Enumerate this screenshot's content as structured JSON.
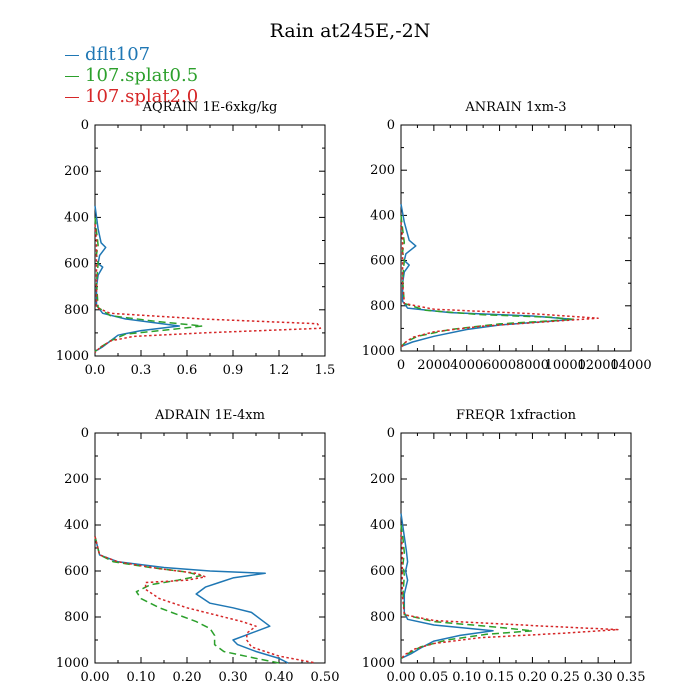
{
  "title": "Rain at245E,-2N",
  "legend": [
    {
      "label": "dflt107",
      "color": "#1f77b4"
    },
    {
      "label": "107.splat0.5",
      "color": "#2ca02c"
    },
    {
      "label": "107.splat2.0",
      "color": "#d62728"
    }
  ],
  "chart_data": [
    {
      "type": "line",
      "title": "AQRAIN  1E-6xkg/kg",
      "ylim": [
        1000,
        0
      ],
      "yticks": [
        0,
        200,
        400,
        600,
        800,
        1000
      ],
      "xlim": [
        0,
        1.5
      ],
      "xticks": [
        0.0,
        0.3,
        0.6,
        0.9,
        1.2,
        1.5
      ],
      "xtick_labels": [
        "0.0",
        "0.3",
        "0.6",
        "0.9",
        "1.2",
        "1.5"
      ],
      "series": [
        {
          "name": "dflt107",
          "style": "solid",
          "color": "#1f77b4",
          "points": [
            [
              0,
              350
            ],
            [
              0.02,
              450
            ],
            [
              0.04,
              510
            ],
            [
              0.07,
              530
            ],
            [
              0.03,
              565
            ],
            [
              0.02,
              600
            ],
            [
              0.05,
              615
            ],
            [
              0.02,
              650
            ],
            [
              0.01,
              700
            ],
            [
              0.01,
              780
            ],
            [
              0.05,
              815
            ],
            [
              0.2,
              840
            ],
            [
              0.55,
              870
            ],
            [
              0.3,
              890
            ],
            [
              0.15,
              910
            ],
            [
              0.1,
              935
            ],
            [
              0.05,
              960
            ],
            [
              0,
              980
            ]
          ]
        },
        {
          "name": "107.splat0.5",
          "style": "dashed",
          "color": "#2ca02c",
          "points": [
            [
              0,
              400
            ],
            [
              0.01,
              460
            ],
            [
              0.02,
              520
            ],
            [
              0.01,
              560
            ],
            [
              0.02,
              600
            ],
            [
              0.01,
              680
            ],
            [
              0.02,
              790
            ],
            [
              0.1,
              825
            ],
            [
              0.4,
              850
            ],
            [
              0.7,
              870
            ],
            [
              0.5,
              885
            ],
            [
              0.2,
              905
            ],
            [
              0.1,
              935
            ],
            [
              0.04,
              960
            ],
            [
              0,
              980
            ]
          ]
        },
        {
          "name": "107.splat2.0",
          "style": "dotted",
          "color": "#d62728",
          "points": [
            [
              0,
              430
            ],
            [
              0.01,
              500
            ],
            [
              0.01,
              580
            ],
            [
              0.01,
              700
            ],
            [
              0.01,
              790
            ],
            [
              0.1,
              815
            ],
            [
              0.7,
              840
            ],
            [
              1.45,
              860
            ],
            [
              1.47,
              880
            ],
            [
              0.7,
              900
            ],
            [
              0.25,
              915
            ],
            [
              0.1,
              935
            ],
            [
              0.03,
              965
            ],
            [
              0,
              985
            ]
          ]
        }
      ]
    },
    {
      "type": "line",
      "title": "ANRAIN  1xm-3",
      "ylim": [
        1000,
        0
      ],
      "yticks": [
        0,
        200,
        400,
        600,
        800,
        1000
      ],
      "xlim": [
        0,
        14000
      ],
      "xticks": [
        0,
        2000,
        4000,
        6000,
        8000,
        10000,
        12000,
        14000
      ],
      "xtick_labels": [
        "0",
        "2000",
        "4000",
        "6000",
        "8000",
        "10000",
        "12000",
        "14000"
      ],
      "series": [
        {
          "name": "dflt107",
          "style": "solid",
          "color": "#1f77b4",
          "points": [
            [
              0,
              350
            ],
            [
              200,
              430
            ],
            [
              500,
              510
            ],
            [
              900,
              535
            ],
            [
              300,
              570
            ],
            [
              200,
              600
            ],
            [
              500,
              620
            ],
            [
              200,
              650
            ],
            [
              100,
              700
            ],
            [
              100,
              780
            ],
            [
              400,
              810
            ],
            [
              3000,
              830
            ],
            [
              8000,
              845
            ],
            [
              10500,
              860
            ],
            [
              6000,
              885
            ],
            [
              4000,
              905
            ],
            [
              2000,
              935
            ],
            [
              700,
              960
            ],
            [
              0,
              980
            ]
          ]
        },
        {
          "name": "107.splat0.5",
          "style": "dashed",
          "color": "#2ca02c",
          "points": [
            [
              0,
              400
            ],
            [
              100,
              460
            ],
            [
              200,
              520
            ],
            [
              100,
              560
            ],
            [
              200,
              600
            ],
            [
              100,
              680
            ],
            [
              200,
              790
            ],
            [
              1500,
              820
            ],
            [
              5000,
              840
            ],
            [
              9000,
              850
            ],
            [
              10500,
              860
            ],
            [
              6000,
              880
            ],
            [
              3000,
              905
            ],
            [
              1000,
              935
            ],
            [
              300,
              960
            ],
            [
              0,
              980
            ]
          ]
        },
        {
          "name": "107.splat2.0",
          "style": "dotted",
          "color": "#d62728",
          "points": [
            [
              0,
              430
            ],
            [
              100,
              500
            ],
            [
              100,
              580
            ],
            [
              100,
              700
            ],
            [
              200,
              790
            ],
            [
              2000,
              815
            ],
            [
              8000,
              835
            ],
            [
              12000,
              855
            ],
            [
              9000,
              870
            ],
            [
              5000,
              890
            ],
            [
              2000,
              915
            ],
            [
              700,
              940
            ],
            [
              200,
              965
            ],
            [
              0,
              985
            ]
          ]
        }
      ]
    },
    {
      "type": "line",
      "title": "ADRAIN  1E-4xm",
      "ylim": [
        1000,
        0
      ],
      "yticks": [
        0,
        200,
        400,
        600,
        800,
        1000
      ],
      "xlim": [
        0,
        0.5
      ],
      "xticks": [
        0.0,
        0.1,
        0.2,
        0.3,
        0.4,
        0.5
      ],
      "xtick_labels": [
        "0.00",
        "0.10",
        "0.20",
        "0.30",
        "0.40",
        "0.50"
      ],
      "series": [
        {
          "name": "dflt107",
          "style": "solid",
          "color": "#1f77b4",
          "points": [
            [
              0,
              450
            ],
            [
              0.01,
              530
            ],
            [
              0.05,
              560
            ],
            [
              0.15,
              585
            ],
            [
              0.25,
              600
            ],
            [
              0.37,
              610
            ],
            [
              0.3,
              630
            ],
            [
              0.27,
              650
            ],
            [
              0.24,
              670
            ],
            [
              0.22,
              700
            ],
            [
              0.25,
              740
            ],
            [
              0.3,
              760
            ],
            [
              0.34,
              780
            ],
            [
              0.36,
              810
            ],
            [
              0.38,
              840
            ],
            [
              0.34,
              870
            ],
            [
              0.3,
              900
            ],
            [
              0.31,
              920
            ],
            [
              0.35,
              950
            ],
            [
              0.4,
              980
            ],
            [
              0.42,
              1000
            ]
          ]
        },
        {
          "name": "107.splat0.5",
          "style": "dashed",
          "color": "#2ca02c",
          "points": [
            [
              0,
              450
            ],
            [
              0.01,
              530
            ],
            [
              0.04,
              560
            ],
            [
              0.12,
              585
            ],
            [
              0.2,
              605
            ],
            [
              0.23,
              620
            ],
            [
              0.18,
              640
            ],
            [
              0.12,
              660
            ],
            [
              0.09,
              690
            ],
            [
              0.1,
              720
            ],
            [
              0.14,
              760
            ],
            [
              0.18,
              790
            ],
            [
              0.22,
              820
            ],
            [
              0.25,
              850
            ],
            [
              0.26,
              880
            ],
            [
              0.26,
              920
            ],
            [
              0.28,
              950
            ],
            [
              0.35,
              980
            ],
            [
              0.4,
              1000
            ]
          ]
        },
        {
          "name": "107.splat2.0",
          "style": "dotted",
          "color": "#d62728",
          "points": [
            [
              0,
              450
            ],
            [
              0.01,
              530
            ],
            [
              0.05,
              560
            ],
            [
              0.14,
              590
            ],
            [
              0.22,
              610
            ],
            [
              0.24,
              625
            ],
            [
              0.2,
              640
            ],
            [
              0.11,
              650
            ],
            [
              0.11,
              680
            ],
            [
              0.14,
              720
            ],
            [
              0.2,
              760
            ],
            [
              0.26,
              790
            ],
            [
              0.32,
              820
            ],
            [
              0.35,
              840
            ],
            [
              0.33,
              870
            ],
            [
              0.33,
              900
            ],
            [
              0.34,
              930
            ],
            [
              0.4,
              970
            ],
            [
              0.48,
              1000
            ]
          ]
        }
      ]
    },
    {
      "type": "line",
      "title": "FREQR  1xfraction",
      "ylim": [
        1000,
        0
      ],
      "yticks": [
        0,
        200,
        400,
        600,
        800,
        1000
      ],
      "xlim": [
        0,
        0.35
      ],
      "xticks": [
        0.0,
        0.05,
        0.1,
        0.15,
        0.2,
        0.25,
        0.3,
        0.35
      ],
      "xtick_labels": [
        "0.00",
        "0.05",
        "0.10",
        "0.15",
        "0.20",
        "0.25",
        "0.30",
        "0.35"
      ],
      "series": [
        {
          "name": "dflt107",
          "style": "solid",
          "color": "#1f77b4",
          "points": [
            [
              0,
              350
            ],
            [
              0.005,
              450
            ],
            [
              0.008,
              510
            ],
            [
              0.01,
              560
            ],
            [
              0.007,
              600
            ],
            [
              0.01,
              640
            ],
            [
              0.005,
              700
            ],
            [
              0.005,
              780
            ],
            [
              0.01,
              810
            ],
            [
              0.05,
              835
            ],
            [
              0.14,
              860
            ],
            [
              0.09,
              880
            ],
            [
              0.05,
              905
            ],
            [
              0.03,
              935
            ],
            [
              0.015,
              960
            ],
            [
              0,
              980
            ]
          ]
        },
        {
          "name": "107.splat0.5",
          "style": "dashed",
          "color": "#2ca02c",
          "points": [
            [
              0,
              400
            ],
            [
              0.003,
              460
            ],
            [
              0.005,
              520
            ],
            [
              0.003,
              570
            ],
            [
              0.005,
              620
            ],
            [
              0.003,
              700
            ],
            [
              0.005,
              790
            ],
            [
              0.05,
              820
            ],
            [
              0.15,
              845
            ],
            [
              0.2,
              860
            ],
            [
              0.13,
              875
            ],
            [
              0.07,
              900
            ],
            [
              0.03,
              930
            ],
            [
              0.01,
              960
            ],
            [
              0,
              980
            ]
          ]
        },
        {
          "name": "107.splat2.0",
          "style": "dotted",
          "color": "#d62728",
          "points": [
            [
              0,
              430
            ],
            [
              0.002,
              500
            ],
            [
              0.002,
              580
            ],
            [
              0.002,
              700
            ],
            [
              0.005,
              790
            ],
            [
              0.05,
              815
            ],
            [
              0.22,
              840
            ],
            [
              0.33,
              855
            ],
            [
              0.25,
              870
            ],
            [
              0.12,
              890
            ],
            [
              0.05,
              915
            ],
            [
              0.02,
              940
            ],
            [
              0.005,
              965
            ],
            [
              0,
              985
            ]
          ]
        }
      ]
    }
  ]
}
